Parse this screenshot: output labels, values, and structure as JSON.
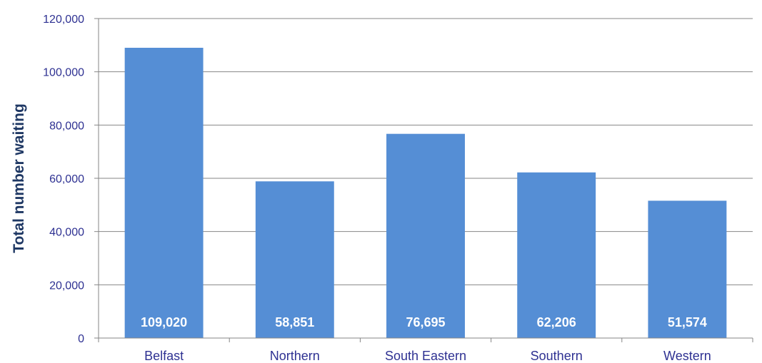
{
  "chart_data": {
    "type": "bar",
    "title": "",
    "xlabel": "",
    "ylabel": "Total number waiting",
    "categories": [
      "Belfast",
      "Northern",
      "South Eastern",
      "Southern",
      "Western"
    ],
    "values": [
      109020,
      58851,
      76695,
      62206,
      51574
    ],
    "data_labels": [
      "109,020",
      "58,851",
      "76,695",
      "62,206",
      "51,574"
    ],
    "ylim": [
      0,
      120000
    ],
    "yticks": [
      0,
      20000,
      40000,
      60000,
      80000,
      100000,
      120000
    ],
    "ytick_labels": [
      "0",
      "20,000",
      "40,000",
      "60,000",
      "80,000",
      "100,000",
      "120,000"
    ],
    "grid": true,
    "legend": "none",
    "colors": {
      "bar": "#558ed5",
      "grid": "#868686",
      "tick_text": "#2e3192",
      "axis_title": "#1f3864",
      "data_label": "#ffffff"
    }
  }
}
